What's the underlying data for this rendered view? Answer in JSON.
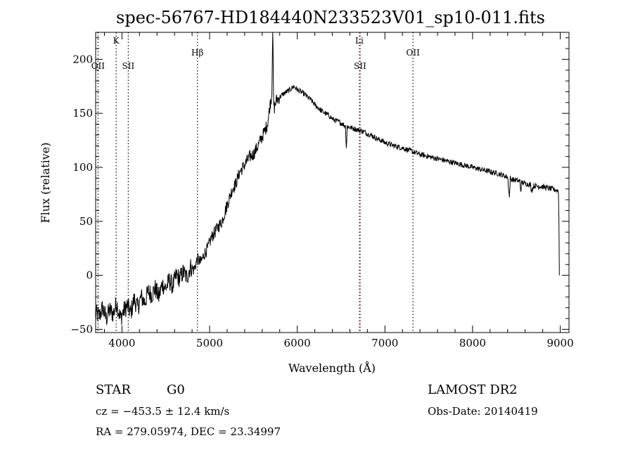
{
  "title": "spec-56767-HD184440N233523V01_sp10-011.fits",
  "info": {
    "object_class": "STAR",
    "subclass": "G0",
    "survey": "LAMOST DR2",
    "redshift": "cz = −453.5 ± 12.4 km/s",
    "obs_date": "Obs-Date: 20140419",
    "coords": "RA = 279.05974, DEC =  23.34997"
  },
  "chart_data": {
    "type": "line",
    "title": "spec-56767-HD184440N233523V01_sp10-011.fits",
    "xlabel": "Wavelength (Å)",
    "ylabel": "Flux (relative)",
    "xlim": [
      3700,
      9100
    ],
    "ylim": [
      -53,
      225
    ],
    "x_ticks": [
      4000,
      5000,
      6000,
      7000,
      8000,
      9000
    ],
    "y_ticks": [
      -50,
      0,
      50,
      100,
      150,
      200
    ],
    "grid": false,
    "series": [
      {
        "color": "#000000",
        "x": [
          3700,
          3740,
          3780,
          3820,
          3860,
          3900,
          3940,
          3980,
          4020,
          4060,
          4100,
          4140,
          4180,
          4220,
          4260,
          4300,
          4340,
          4380,
          4420,
          4460,
          4500,
          4540,
          4580,
          4620,
          4660,
          4700,
          4740,
          4780,
          4820,
          4860,
          4900,
          4940,
          4980,
          5020,
          5060,
          5100,
          5140,
          5180,
          5220,
          5260,
          5300,
          5340,
          5380,
          5420,
          5460,
          5500,
          5540,
          5580,
          5620,
          5660,
          5690,
          5710,
          5720,
          5730,
          5740,
          5760,
          5800,
          5840,
          5880,
          5920,
          5960,
          6000,
          6040,
          6080,
          6120,
          6160,
          6200,
          6240,
          6280,
          6320,
          6360,
          6400,
          6440,
          6480,
          6520,
          6550,
          6560,
          6570,
          6600,
          6640,
          6680,
          6720,
          6760,
          6800,
          6840,
          6880,
          6920,
          6960,
          7000,
          7100,
          7200,
          7300,
          7400,
          7500,
          7600,
          7700,
          7800,
          7900,
          8000,
          8100,
          8200,
          8300,
          8400,
          8420,
          8430,
          8440,
          8500,
          8540,
          8550,
          8560,
          8600,
          8660,
          8670,
          8700,
          8800,
          8900,
          8950,
          8980,
          8985,
          8990
        ],
        "y": [
          -35,
          -38,
          -30,
          -40,
          -32,
          -36,
          -25,
          -40,
          -33,
          -28,
          -35,
          -22,
          -30,
          -20,
          -25,
          -15,
          -18,
          -12,
          -20,
          -8,
          -12,
          -5,
          -10,
          0,
          -3,
          3,
          -2,
          8,
          5,
          15,
          12,
          20,
          25,
          35,
          40,
          45,
          50,
          60,
          70,
          80,
          85,
          95,
          100,
          105,
          110,
          112,
          118,
          125,
          132,
          140,
          158,
          168,
          230,
          160,
          155,
          162,
          165,
          168,
          170,
          172,
          175,
          172,
          170,
          168,
          165,
          162,
          158,
          155,
          152,
          150,
          148,
          145,
          143,
          142,
          140,
          138,
          118,
          138,
          137,
          136,
          135,
          134,
          133,
          131,
          130,
          128,
          126,
          125,
          123,
          120,
          118,
          115,
          112,
          110,
          108,
          106,
          104,
          102,
          100,
          98,
          96,
          94,
          91,
          72,
          90,
          89,
          88,
          87,
          78,
          86,
          85,
          84,
          78,
          83,
          82,
          80,
          79,
          78,
          50,
          0
        ]
      }
    ],
    "spectral_lines": [
      {
        "label": "OII",
        "x": 3727,
        "color": "#000000",
        "row": "low"
      },
      {
        "label": "K",
        "x": 3934,
        "color": "#000000",
        "row": "high"
      },
      {
        "label": "SII",
        "x": 4072,
        "color": "#000000",
        "row": "low"
      },
      {
        "label": "Hβ",
        "x": 4861,
        "color": "#000000",
        "row": "mid"
      },
      {
        "label": "Li",
        "x": 6708,
        "color": "#d02020",
        "row": "high"
      },
      {
        "label": "SII",
        "x": 6717,
        "color": "#000000",
        "row": "low"
      },
      {
        "label": "OII",
        "x": 7320,
        "color": "#000000",
        "row": "mid"
      }
    ]
  }
}
